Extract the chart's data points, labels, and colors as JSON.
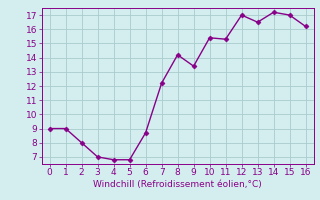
{
  "x": [
    0,
    1,
    2,
    3,
    4,
    5,
    6,
    7,
    8,
    9,
    10,
    11,
    12,
    13,
    14,
    15,
    16
  ],
  "y": [
    9,
    9,
    8,
    7,
    6.8,
    6.8,
    8.7,
    12.2,
    14.2,
    13.4,
    15.4,
    15.3,
    17,
    16.5,
    17.2,
    17,
    16.2
  ],
  "line_color": "#880088",
  "marker_color": "#880088",
  "marker": "D",
  "marker_size": 2.5,
  "line_width": 1.0,
  "xlabel": "Windchill (Refroidissement éolien,°C)",
  "xlabel_color": "#880088",
  "xlim": [
    -0.5,
    16.5
  ],
  "ylim": [
    6.5,
    17.5
  ],
  "xticks": [
    0,
    1,
    2,
    3,
    4,
    5,
    6,
    7,
    8,
    9,
    10,
    11,
    12,
    13,
    14,
    15,
    16
  ],
  "yticks": [
    7,
    8,
    9,
    10,
    11,
    12,
    13,
    14,
    15,
    16,
    17
  ],
  "bg_color": "#d4eef0",
  "grid_color": "#aacccc",
  "tick_color": "#880088",
  "font_size": 6.5
}
